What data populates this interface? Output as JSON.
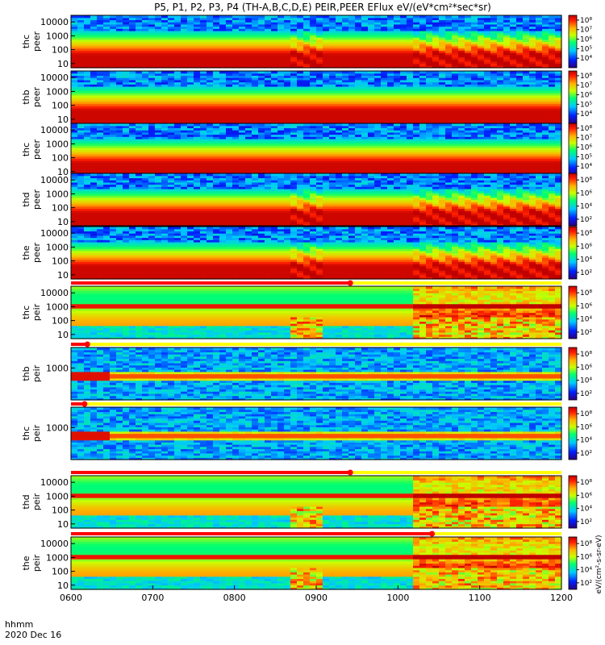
{
  "chart_data": {
    "type": "heatmap",
    "title": "P5, P1, P2, P3, P4 (TH-A,B,C,D,E) PEIR,PEER EFlux eV/(eV*cm²*sec*sr)",
    "x_axis": {
      "ticks": [
        "0600",
        "0700",
        "0800",
        "0900",
        "1000",
        "1100",
        "1200"
      ],
      "label_line1": "hhmm",
      "label_line2": "2020 Dec 16",
      "range": [
        "0600",
        "1200"
      ]
    },
    "colorbar_label": "eV/(cm²-s-sr-eV)",
    "panels": [
      {
        "name": "thc peer",
        "label_line1": "thc",
        "label_line2": "peer",
        "y_ticks": [
          "10",
          "100",
          "1000",
          "10000"
        ],
        "ylim": [
          5,
          30000
        ],
        "log": true,
        "cbar_ticks": [
          "10⁴",
          "10⁵",
          "10⁶",
          "10⁷",
          "10⁸"
        ],
        "cbar_range": [
          3,
          8.5
        ],
        "pattern": "electron",
        "bursts": true,
        "bar_end": null
      },
      {
        "name": "thb peer",
        "label_line1": "thb",
        "label_line2": "peer",
        "y_ticks": [
          "10",
          "100",
          "1000",
          "10000"
        ],
        "ylim": [
          5,
          30000
        ],
        "log": true,
        "cbar_ticks": [
          "10⁴",
          "10⁵",
          "10⁶",
          "10⁷",
          "10⁸"
        ],
        "cbar_range": [
          3,
          8.5
        ],
        "pattern": "electron",
        "bursts": false,
        "bar_end": null
      },
      {
        "name": "thc peer",
        "label_line1": "thc",
        "label_line2": "peer",
        "y_ticks": [
          "10",
          "100",
          "1000",
          "10000"
        ],
        "ylim": [
          5,
          30000
        ],
        "log": true,
        "cbar_ticks": [
          "10⁴",
          "10⁵",
          "10⁶",
          "10⁷",
          "10⁸"
        ],
        "cbar_range": [
          3,
          8.5
        ],
        "pattern": "electron",
        "bursts": false,
        "bar_end": null
      },
      {
        "name": "thd peer",
        "label_line1": "thd",
        "label_line2": "peer",
        "y_ticks": [
          "10",
          "100",
          "1000",
          "10000"
        ],
        "ylim": [
          5,
          30000
        ],
        "log": true,
        "cbar_ticks": [
          "10²",
          "10⁴",
          "10⁶",
          "10⁸"
        ],
        "cbar_range": [
          1,
          9
        ],
        "pattern": "electron",
        "bursts": true,
        "bar_end": null
      },
      {
        "name": "the peer",
        "label_line1": "the",
        "label_line2": "peer",
        "y_ticks": [
          "10",
          "100",
          "1000",
          "10000"
        ],
        "ylim": [
          5,
          30000
        ],
        "log": true,
        "cbar_ticks": [
          "10²",
          "10⁴",
          "10⁶",
          "10⁸"
        ],
        "cbar_range": [
          1,
          9
        ],
        "pattern": "electron",
        "bursts": true,
        "bar_end": null
      },
      {
        "name": "thc peir",
        "label_line1": "thc",
        "label_line2": "peir",
        "y_ticks": [
          "10",
          "100",
          "1000",
          "10000"
        ],
        "ylim": [
          5,
          30000
        ],
        "log": true,
        "cbar_ticks": [
          "10²",
          "10⁴",
          "10⁶",
          "10⁸"
        ],
        "cbar_range": [
          1,
          9
        ],
        "pattern": "ion",
        "bursts": true,
        "bar_end": "0925"
      },
      {
        "name": "thb peir",
        "label_line1": "thb",
        "label_line2": "peir",
        "y_ticks": [
          "1000"
        ],
        "ylim": [
          5,
          30000
        ],
        "log": true,
        "cbar_ticks": [
          "10²",
          "10⁴",
          "10⁶",
          "10⁸"
        ],
        "cbar_range": [
          1,
          9
        ],
        "pattern": "ion_sparse",
        "bursts": false,
        "bar_end": "0612"
      },
      {
        "name": "thc peir",
        "label_line1": "thc",
        "label_line2": "peir",
        "y_ticks": [
          "1000"
        ],
        "ylim": [
          5,
          30000
        ],
        "log": true,
        "cbar_ticks": [
          "10²",
          "10⁴",
          "10⁶",
          "10⁸"
        ],
        "cbar_range": [
          1,
          9
        ],
        "pattern": "ion_sparse",
        "bursts": false,
        "bar_end": "0610"
      },
      {
        "name": "thd peir",
        "label_line1": "thd",
        "label_line2": "peir",
        "y_ticks": [
          "10",
          "100",
          "1000",
          "10000"
        ],
        "ylim": [
          5,
          30000
        ],
        "log": true,
        "cbar_ticks": [
          "10²",
          "10⁴",
          "10⁶",
          "10⁸"
        ],
        "cbar_range": [
          1,
          9
        ],
        "pattern": "ion",
        "bursts": true,
        "bar_end": "0925"
      },
      {
        "name": "the peir",
        "label_line1": "the",
        "label_line2": "peir",
        "y_ticks": [
          "10",
          "100",
          "1000",
          "10000"
        ],
        "ylim": [
          5,
          30000
        ],
        "log": true,
        "cbar_ticks": [
          "10²",
          "10⁴",
          "10⁶",
          "10⁸"
        ],
        "cbar_range": [
          1,
          9
        ],
        "pattern": "ion",
        "bursts": true,
        "bar_end": "0985"
      }
    ]
  }
}
